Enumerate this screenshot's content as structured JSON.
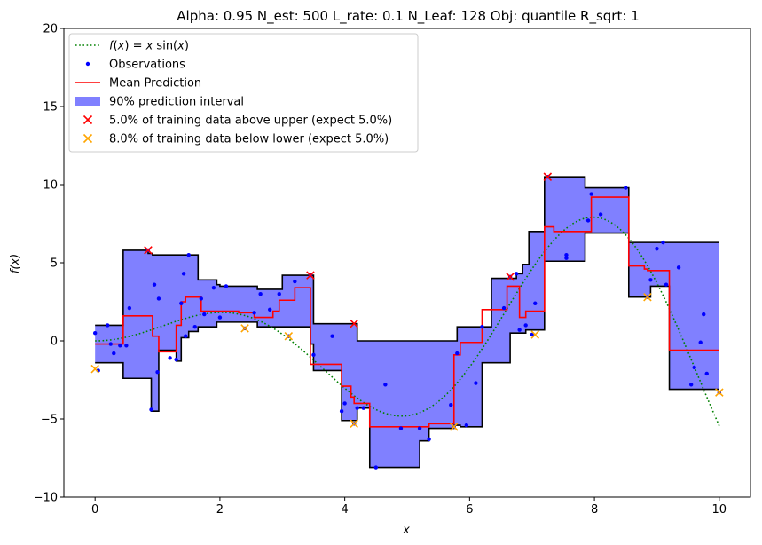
{
  "chart_data": {
    "type": "line",
    "title": "Alpha: 0.95  N_est: 500  L_rate: 0.1  N_Leaf: 128  Obj: quantile  R_sqrt: 1",
    "xlabel": "x",
    "ylabel": "f(x)",
    "xlim": [
      -0.5,
      10.5
    ],
    "ylim": [
      -10,
      20
    ],
    "xticks": [
      0,
      2,
      4,
      6,
      8,
      10
    ],
    "yticks": [
      -10,
      -5,
      0,
      5,
      10,
      15,
      20
    ],
    "grid": false,
    "legend_position": "top-left",
    "legend": [
      {
        "label": "f(x) = x sin(x)",
        "kind": "dotted-line",
        "color": "#008000"
      },
      {
        "label": "Observations",
        "kind": "dot",
        "color": "#0000ff"
      },
      {
        "label": "Mean Prediction",
        "kind": "line",
        "color": "#ff0000"
      },
      {
        "label": "90% prediction interval",
        "kind": "patch",
        "color": "#8080ff"
      },
      {
        "label": "5.0% of training data above upper (expect 5.0%)",
        "kind": "x-marker",
        "color": "#ff0000"
      },
      {
        "label": "8.0% of training data below lower (expect 5.0%)",
        "kind": "x-marker",
        "color": "#ffa500"
      }
    ],
    "true_function": "x*sin(x)",
    "observations": [
      [
        0.0,
        0.5
      ],
      [
        0.05,
        -1.9
      ],
      [
        0.2,
        1.0
      ],
      [
        0.25,
        -0.2
      ],
      [
        0.3,
        -0.8
      ],
      [
        0.4,
        -0.3
      ],
      [
        0.5,
        -0.3
      ],
      [
        0.55,
        2.1
      ],
      [
        0.85,
        5.8
      ],
      [
        0.9,
        -4.4
      ],
      [
        0.95,
        3.6
      ],
      [
        1.0,
        -2.0
      ],
      [
        1.02,
        2.7
      ],
      [
        1.2,
        -1.1
      ],
      [
        1.3,
        -1.2
      ],
      [
        1.38,
        2.4
      ],
      [
        1.42,
        4.3
      ],
      [
        1.45,
        0.3
      ],
      [
        1.5,
        5.5
      ],
      [
        1.6,
        0.9
      ],
      [
        1.7,
        2.7
      ],
      [
        1.75,
        1.7
      ],
      [
        1.9,
        3.4
      ],
      [
        2.0,
        1.5
      ],
      [
        2.1,
        3.5
      ],
      [
        2.4,
        0.8
      ],
      [
        2.55,
        1.8
      ],
      [
        2.65,
        3.0
      ],
      [
        2.8,
        2.0
      ],
      [
        2.95,
        3.0
      ],
      [
        3.1,
        0.3
      ],
      [
        3.2,
        3.8
      ],
      [
        3.45,
        4.2
      ],
      [
        3.5,
        -0.9
      ],
      [
        3.8,
        0.3
      ],
      [
        3.95,
        -4.5
      ],
      [
        4.0,
        -4.0
      ],
      [
        4.15,
        -5.3
      ],
      [
        4.2,
        -4.3
      ],
      [
        4.3,
        -4.3
      ],
      [
        4.5,
        -8.1
      ],
      [
        4.65,
        -2.8
      ],
      [
        4.9,
        -5.6
      ],
      [
        5.2,
        -5.6
      ],
      [
        5.35,
        -6.3
      ],
      [
        5.7,
        -4.1
      ],
      [
        5.75,
        -5.5
      ],
      [
        5.8,
        -0.8
      ],
      [
        5.95,
        -5.4
      ],
      [
        6.1,
        -2.7
      ],
      [
        6.2,
        0.9
      ],
      [
        6.55,
        2.1
      ],
      [
        6.65,
        4.1
      ],
      [
        6.75,
        4.3
      ],
      [
        6.8,
        0.7
      ],
      [
        6.9,
        1.0
      ],
      [
        7.0,
        0.4
      ],
      [
        7.05,
        2.4
      ],
      [
        7.25,
        10.5
      ],
      [
        7.55,
        5.5
      ],
      [
        7.55,
        5.3
      ],
      [
        7.9,
        7.7
      ],
      [
        7.95,
        9.4
      ],
      [
        8.1,
        8.1
      ],
      [
        8.5,
        9.8
      ],
      [
        8.85,
        2.8
      ],
      [
        8.9,
        3.9
      ],
      [
        9.0,
        5.9
      ],
      [
        9.1,
        6.3
      ],
      [
        9.15,
        3.6
      ],
      [
        9.35,
        4.7
      ],
      [
        9.55,
        -2.8
      ],
      [
        9.6,
        -1.7
      ],
      [
        9.7,
        -0.1
      ],
      [
        9.75,
        1.7
      ],
      [
        9.8,
        -2.1
      ],
      [
        10.0,
        -3.3
      ]
    ],
    "above_upper": [
      [
        0.85,
        5.8
      ],
      [
        3.45,
        4.2
      ],
      [
        4.15,
        1.1
      ],
      [
        6.65,
        4.1
      ],
      [
        7.25,
        10.5
      ]
    ],
    "below_lower": [
      [
        0.0,
        -1.8
      ],
      [
        2.4,
        0.8
      ],
      [
        3.1,
        0.3
      ],
      [
        4.15,
        -5.3
      ],
      [
        5.75,
        -5.5
      ],
      [
        7.05,
        0.4
      ],
      [
        8.85,
        2.8
      ],
      [
        10.0,
        -3.3
      ]
    ],
    "upper_bound": [
      [
        0.0,
        1.0
      ],
      [
        0.45,
        1.0
      ],
      [
        0.45,
        5.8
      ],
      [
        0.85,
        5.8
      ],
      [
        0.85,
        5.6
      ],
      [
        0.92,
        5.6
      ],
      [
        0.92,
        5.5
      ],
      [
        1.65,
        5.5
      ],
      [
        1.65,
        3.9
      ],
      [
        1.95,
        3.9
      ],
      [
        1.95,
        3.6
      ],
      [
        2.0,
        3.6
      ],
      [
        2.0,
        3.5
      ],
      [
        2.6,
        3.5
      ],
      [
        2.6,
        3.3
      ],
      [
        3.0,
        3.3
      ],
      [
        3.0,
        4.2
      ],
      [
        3.5,
        4.2
      ],
      [
        3.5,
        1.1
      ],
      [
        4.2,
        1.1
      ],
      [
        4.2,
        0.0
      ],
      [
        5.8,
        0.0
      ],
      [
        5.8,
        0.9
      ],
      [
        6.35,
        0.9
      ],
      [
        6.35,
        4.0
      ],
      [
        6.75,
        4.0
      ],
      [
        6.75,
        4.3
      ],
      [
        6.85,
        4.3
      ],
      [
        6.85,
        4.9
      ],
      [
        6.95,
        4.9
      ],
      [
        6.95,
        7.0
      ],
      [
        7.2,
        7.0
      ],
      [
        7.2,
        10.5
      ],
      [
        7.85,
        10.5
      ],
      [
        7.85,
        9.8
      ],
      [
        8.55,
        9.8
      ],
      [
        8.55,
        6.3
      ],
      [
        10.0,
        6.3
      ]
    ],
    "lower_bound": [
      [
        0.0,
        -1.4
      ],
      [
        0.45,
        -1.4
      ],
      [
        0.45,
        -2.4
      ],
      [
        0.9,
        -2.4
      ],
      [
        0.9,
        -4.5
      ],
      [
        1.02,
        -4.5
      ],
      [
        1.02,
        -0.6
      ],
      [
        1.3,
        -0.6
      ],
      [
        1.3,
        -1.3
      ],
      [
        1.38,
        -1.3
      ],
      [
        1.38,
        0.2
      ],
      [
        1.5,
        0.2
      ],
      [
        1.5,
        0.6
      ],
      [
        1.65,
        0.6
      ],
      [
        1.65,
        0.9
      ],
      [
        1.95,
        0.9
      ],
      [
        1.95,
        1.2
      ],
      [
        2.6,
        1.2
      ],
      [
        2.6,
        0.9
      ],
      [
        3.45,
        0.9
      ],
      [
        3.45,
        -0.2
      ],
      [
        3.5,
        -0.2
      ],
      [
        3.5,
        -1.9
      ],
      [
        3.95,
        -1.9
      ],
      [
        3.95,
        -5.1
      ],
      [
        4.2,
        -5.1
      ],
      [
        4.2,
        -4.3
      ],
      [
        4.4,
        -4.3
      ],
      [
        4.4,
        -8.1
      ],
      [
        5.2,
        -8.1
      ],
      [
        5.2,
        -6.4
      ],
      [
        5.35,
        -6.4
      ],
      [
        5.35,
        -5.6
      ],
      [
        5.75,
        -5.6
      ],
      [
        5.75,
        -5.4
      ],
      [
        5.85,
        -5.4
      ],
      [
        5.85,
        -5.5
      ],
      [
        6.2,
        -5.5
      ],
      [
        6.2,
        -1.4
      ],
      [
        6.65,
        -1.4
      ],
      [
        6.65,
        0.5
      ],
      [
        6.9,
        0.5
      ],
      [
        6.9,
        0.7
      ],
      [
        7.2,
        0.7
      ],
      [
        7.2,
        5.1
      ],
      [
        7.85,
        5.1
      ],
      [
        7.85,
        6.9
      ],
      [
        8.55,
        6.9
      ],
      [
        8.55,
        2.8
      ],
      [
        8.9,
        2.8
      ],
      [
        8.9,
        3.5
      ],
      [
        9.2,
        3.5
      ],
      [
        9.2,
        -3.1
      ],
      [
        10.0,
        -3.1
      ]
    ],
    "mean_prediction": [
      [
        0.0,
        -0.2
      ],
      [
        0.45,
        -0.2
      ],
      [
        0.45,
        1.6
      ],
      [
        0.92,
        1.6
      ],
      [
        0.92,
        0.3
      ],
      [
        1.02,
        0.3
      ],
      [
        1.02,
        -0.7
      ],
      [
        1.3,
        -0.7
      ],
      [
        1.3,
        1.0
      ],
      [
        1.38,
        1.0
      ],
      [
        1.38,
        2.5
      ],
      [
        1.45,
        2.5
      ],
      [
        1.45,
        2.8
      ],
      [
        1.7,
        2.8
      ],
      [
        1.7,
        1.9
      ],
      [
        2.3,
        1.9
      ],
      [
        2.3,
        1.8
      ],
      [
        2.55,
        1.8
      ],
      [
        2.55,
        1.5
      ],
      [
        2.85,
        1.5
      ],
      [
        2.85,
        1.9
      ],
      [
        2.95,
        1.9
      ],
      [
        2.95,
        2.6
      ],
      [
        3.2,
        2.6
      ],
      [
        3.2,
        3.4
      ],
      [
        3.45,
        3.4
      ],
      [
        3.45,
        -1.5
      ],
      [
        3.95,
        -1.5
      ],
      [
        3.95,
        -2.9
      ],
      [
        4.1,
        -2.9
      ],
      [
        4.1,
        -3.6
      ],
      [
        4.15,
        -3.6
      ],
      [
        4.15,
        -4.0
      ],
      [
        4.4,
        -4.0
      ],
      [
        4.4,
        -5.5
      ],
      [
        5.35,
        -5.5
      ],
      [
        5.35,
        -5.3
      ],
      [
        5.75,
        -5.3
      ],
      [
        5.75,
        -0.9
      ],
      [
        5.85,
        -0.9
      ],
      [
        5.85,
        -0.1
      ],
      [
        6.2,
        -0.1
      ],
      [
        6.2,
        2.0
      ],
      [
        6.6,
        2.0
      ],
      [
        6.6,
        3.5
      ],
      [
        6.8,
        3.5
      ],
      [
        6.8,
        1.5
      ],
      [
        6.9,
        1.5
      ],
      [
        6.9,
        1.9
      ],
      [
        7.2,
        1.9
      ],
      [
        7.2,
        7.3
      ],
      [
        7.35,
        7.3
      ],
      [
        7.35,
        7.0
      ],
      [
        7.95,
        7.0
      ],
      [
        7.95,
        9.2
      ],
      [
        8.55,
        9.2
      ],
      [
        8.55,
        4.8
      ],
      [
        8.8,
        4.8
      ],
      [
        8.8,
        4.6
      ],
      [
        8.85,
        4.6
      ],
      [
        8.85,
        4.5
      ],
      [
        9.2,
        4.5
      ],
      [
        9.2,
        -0.6
      ],
      [
        10.0,
        -0.6
      ]
    ]
  }
}
